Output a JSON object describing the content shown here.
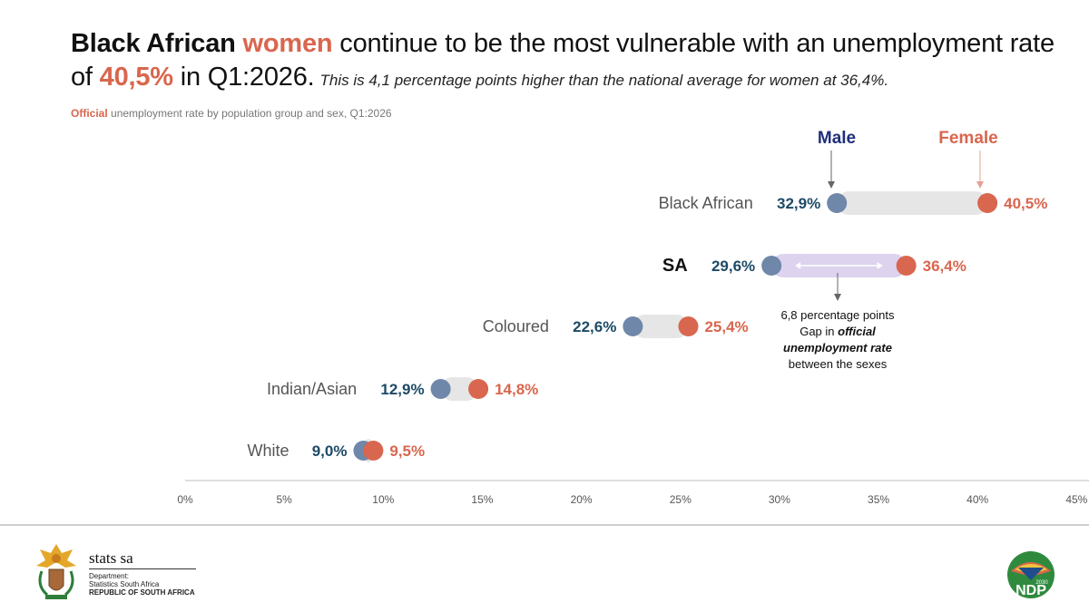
{
  "headline": {
    "part1": "Black African ",
    "part2": "women",
    "part3": " continue to be the most vulnerable with an unemployment rate of ",
    "part4": "40,5%",
    "part5": " in Q1:2026.",
    "note": "This is 4,1 percentage points higher than the national average for women at 36,4%."
  },
  "subtitle": {
    "accent": "Official",
    "rest": " unemployment rate by population group and sex, Q1:2026"
  },
  "colors": {
    "male": "#6f87a8",
    "female": "#d9664e",
    "male_label": "#1d4a66",
    "female_label": "#d9664e",
    "male_header": "#1f2f7a",
    "bar": "#e6e6e6",
    "sa_bar": "#ddd3ee"
  },
  "chart_data": {
    "type": "dumbbell",
    "legend": {
      "male": "Male",
      "female": "Female"
    },
    "xlim": [
      0,
      45
    ],
    "ticks": [
      "0%",
      "5%",
      "10%",
      "15%",
      "20%",
      "25%",
      "30%",
      "35%",
      "40%",
      "45%"
    ],
    "tick_values": [
      0,
      5,
      10,
      15,
      20,
      25,
      30,
      35,
      40,
      45
    ],
    "categories": [
      "Black African",
      "SA",
      "Coloured",
      "Indian/Asian",
      "White"
    ],
    "series": [
      {
        "name": "Male",
        "values": [
          32.9,
          29.6,
          22.6,
          12.9,
          9.0
        ],
        "labels": [
          "32,9%",
          "29,6%",
          "22,6%",
          "12,9%",
          "9,0%"
        ]
      },
      {
        "name": "Female",
        "values": [
          40.5,
          36.4,
          25.4,
          14.8,
          9.5
        ],
        "labels": [
          "40,5%",
          "36,4%",
          "25,4%",
          "14,8%",
          "9,5%"
        ]
      }
    ],
    "annotation": {
      "line1": "6,8 percentage points",
      "line2": "Gap in ",
      "line2_bold": "official",
      "line3_bold": "unemployment rate",
      "line4": "between the sexes"
    }
  },
  "footer": {
    "brand": "stats sa",
    "dept_line1": "Department:",
    "dept_line2": "Statistics South Africa",
    "dept_line3": "REPUBLIC OF SOUTH AFRICA",
    "ndp_text": "NDP",
    "ndp_year": "2030"
  }
}
